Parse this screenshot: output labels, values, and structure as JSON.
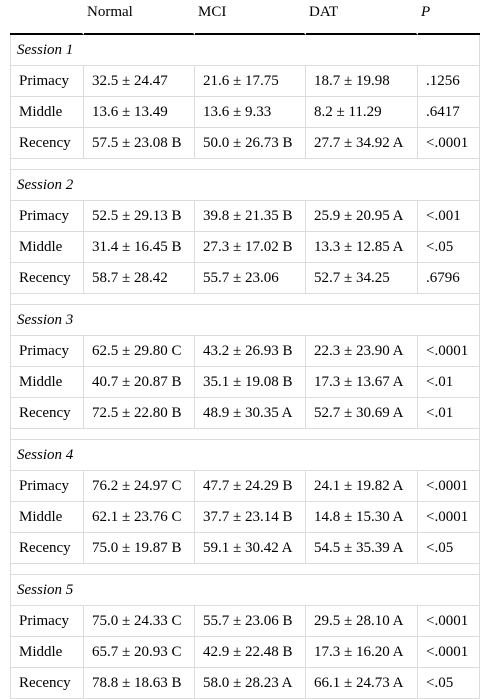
{
  "table": {
    "header": [
      "Normal",
      "MCI",
      "DAT",
      "P"
    ],
    "sections": [
      {
        "title": "Session 1",
        "rows": [
          [
            "Primacy",
            "32.5 ± 24.47",
            "21.6 ± 17.75",
            "18.7 ± 19.98",
            ".1256"
          ],
          [
            "Middle",
            "13.6 ± 13.49",
            "13.6 ± 9.33",
            "8.2 ± 11.29",
            ".6417"
          ],
          [
            "Recency",
            "57.5 ± 23.08 B",
            "50.0 ± 26.73 B",
            "27.7 ± 34.92 A",
            "<.0001"
          ]
        ]
      },
      {
        "title": "Session 2",
        "rows": [
          [
            "Primacy",
            "52.5 ± 29.13 B",
            "39.8 ± 21.35 B",
            "25.9 ± 20.95 A",
            "<.001"
          ],
          [
            "Middle",
            "31.4 ± 16.45 B",
            "27.3 ± 17.02 B",
            "13.3 ± 12.85 A",
            "<.05"
          ],
          [
            "Recency",
            "58.7 ± 28.42",
            "55.7 ± 23.06",
            "52.7 ± 34.25",
            ".6796"
          ]
        ]
      },
      {
        "title": "Session 3",
        "rows": [
          [
            "Primacy",
            "62.5 ± 29.80 C",
            "43.2 ± 26.93 B",
            "22.3 ± 23.90 A",
            "<.0001"
          ],
          [
            "Middle",
            "40.7 ± 20.87 B",
            "35.1 ± 19.08 B",
            "17.3 ± 13.67 A",
            "<.01"
          ],
          [
            "Recency",
            "72.5 ± 22.80 B",
            "48.9 ± 30.35 A",
            "52.7 ± 30.69 A",
            "<.01"
          ]
        ]
      },
      {
        "title": "Session 4",
        "rows": [
          [
            "Primacy",
            "76.2 ± 24.97 C",
            "47.7 ± 24.29 B",
            "24.1 ± 19.82 A",
            "<.0001"
          ],
          [
            "Middle",
            "62.1 ± 23.76 C",
            "37.7 ± 23.14 B",
            "14.8 ± 15.30 A",
            "<.0001"
          ],
          [
            "Recency",
            "75.0 ± 19.87 B",
            "59.1 ± 30.42 A",
            "54.5 ± 35.39 A",
            "<.05"
          ]
        ]
      },
      {
        "title": "Session 5",
        "rows": [
          [
            "Primacy",
            "75.0 ± 24.33 C",
            "55.7 ± 23.06 B",
            "29.5 ± 28.10 A",
            "<.0001"
          ],
          [
            "Middle",
            "65.7 ± 20.93 C",
            "42.9 ± 22.48 B",
            "17.3 ± 16.20 A",
            "<.0001"
          ],
          [
            "Recency",
            "78.8 ± 18.63 B",
            "58.0 ± 28.23 A",
            "66.1 ± 24.73 A",
            "<.05"
          ]
        ]
      }
    ]
  }
}
